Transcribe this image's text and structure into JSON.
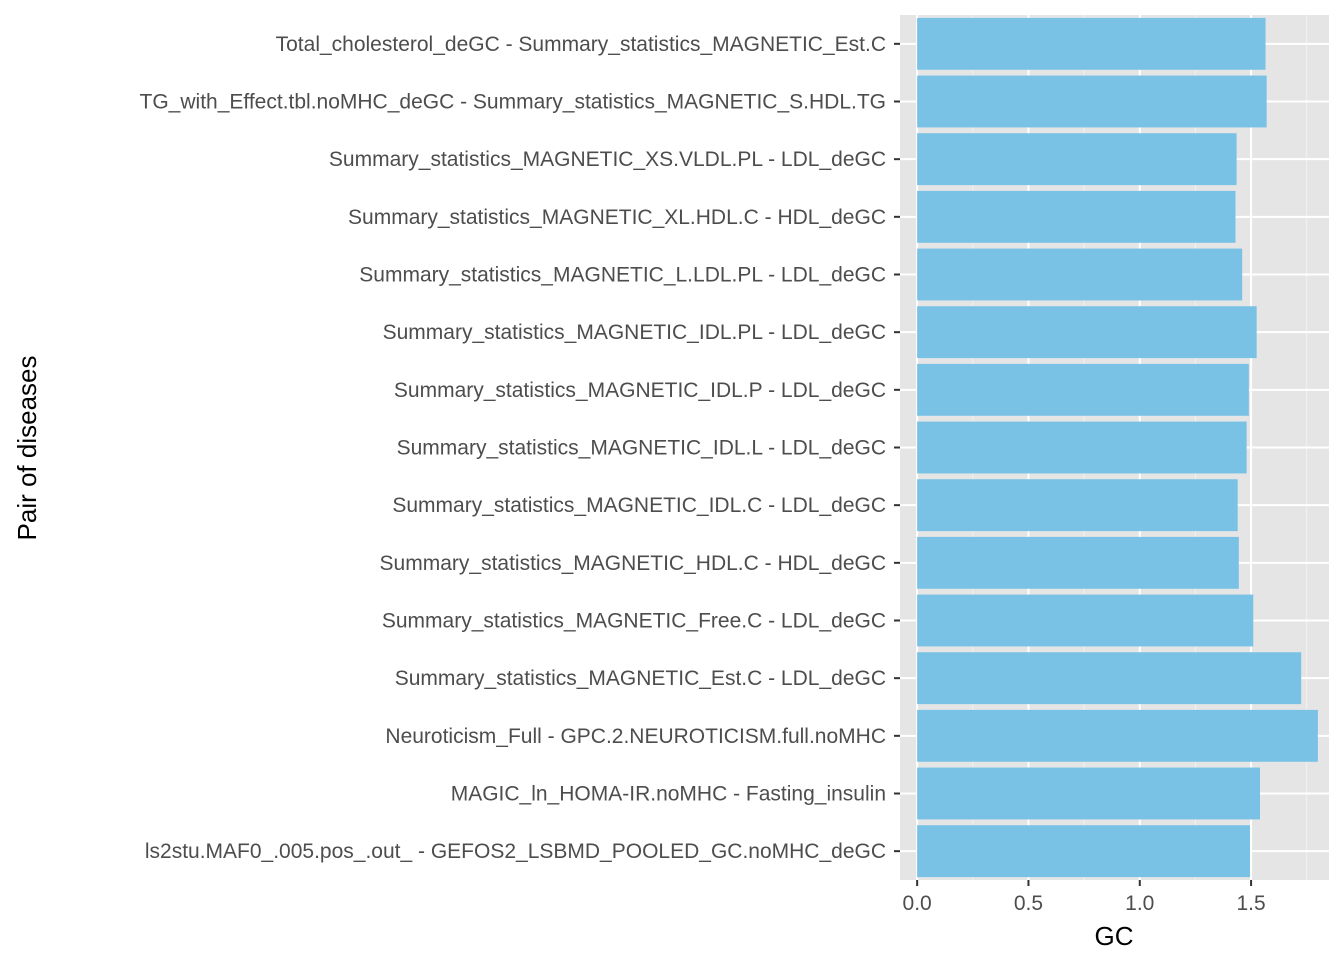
{
  "chart_data": {
    "type": "bar",
    "orientation": "horizontal",
    "title": "",
    "xlabel": "GC",
    "ylabel": "Pair of diseases",
    "xlim": [
      -0.077,
      1.85
    ],
    "xticks": [
      0.0,
      0.5,
      1.0,
      1.5
    ],
    "xtick_labels": [
      "0.0",
      "0.5",
      "1.0",
      "1.5"
    ],
    "grid": true,
    "legend": "none",
    "bar_color": "#79c2e5",
    "panel_color": "#e5e5e5",
    "categories": [
      "Total_cholesterol_deGC - Summary_statistics_MAGNETIC_Est.C",
      "TG_with_Effect.tbl.noMHC_deGC - Summary_statistics_MAGNETIC_S.HDL.TG",
      "Summary_statistics_MAGNETIC_XS.VLDL.PL - LDL_deGC",
      "Summary_statistics_MAGNETIC_XL.HDL.C - HDL_deGC",
      "Summary_statistics_MAGNETIC_L.LDL.PL - LDL_deGC",
      "Summary_statistics_MAGNETIC_IDL.PL - LDL_deGC",
      "Summary_statistics_MAGNETIC_IDL.P - LDL_deGC",
      "Summary_statistics_MAGNETIC_IDL.L - LDL_deGC",
      "Summary_statistics_MAGNETIC_IDL.C - LDL_deGC",
      "Summary_statistics_MAGNETIC_HDL.C - HDL_deGC",
      "Summary_statistics_MAGNETIC_Free.C - LDL_deGC",
      "Summary_statistics_MAGNETIC_Est.C - LDL_deGC",
      "Neuroticism_Full - GPC.2.NEUROTICISM.full.noMHC",
      "MAGIC_ln_HOMA-IR.noMHC - Fasting_insulin",
      "ls2stu.MAF0_.005.pos_.out_ - GEFOS2_LSBMD_POOLED_GC.noMHC_deGC"
    ],
    "values": [
      1.565,
      1.57,
      1.435,
      1.43,
      1.46,
      1.525,
      1.49,
      1.48,
      1.44,
      1.445,
      1.51,
      1.725,
      1.8,
      1.54,
      1.495
    ]
  }
}
